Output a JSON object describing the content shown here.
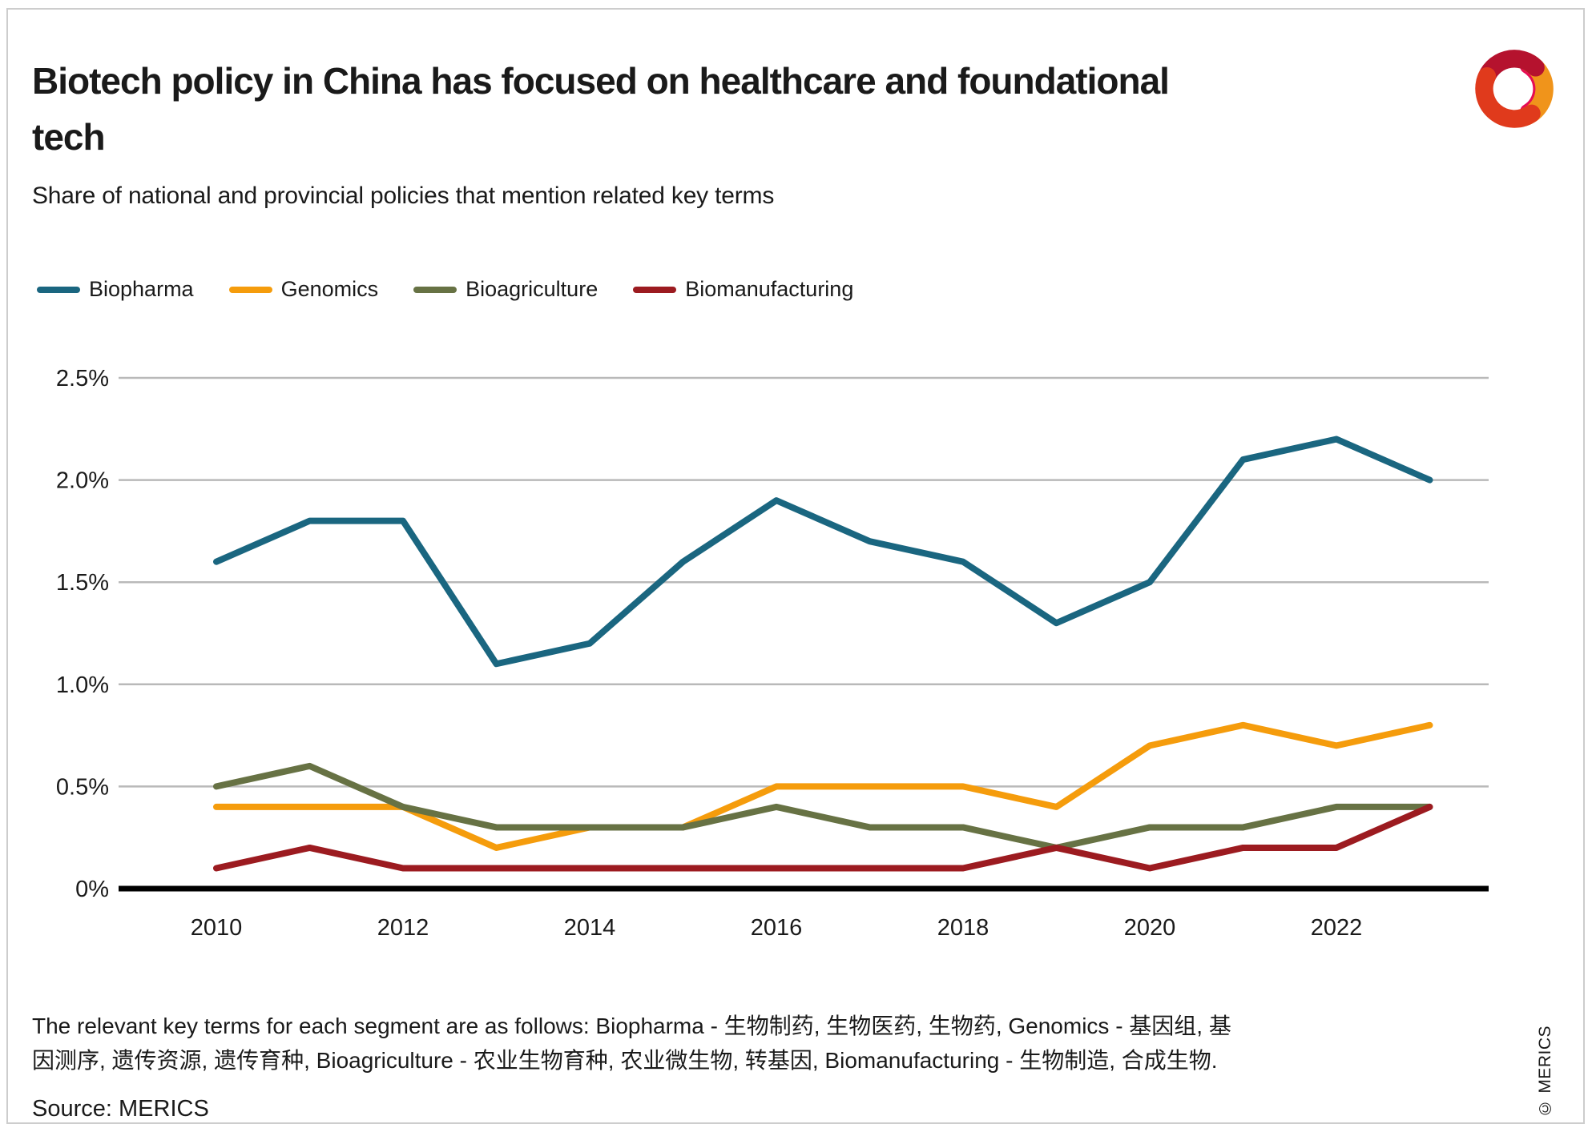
{
  "header": {
    "title_line1": "Biotech policy in China has focused on healthcare and foundational",
    "title_line2": "tech",
    "subtitle": "Share of national and provincial policies that mention related key terms"
  },
  "colors": {
    "grid": "#b9b9b9",
    "axis": "#000000",
    "text": "#1a1a1a",
    "logo_crimson": "#B5122E",
    "logo_orange": "#F0941B",
    "logo_red": "#E03A1C",
    "logo_magenta": "#E60C54"
  },
  "chart_data": {
    "type": "line",
    "title": "Biotech policy in China has focused on healthcare and foundational tech",
    "subtitle": "Share of national and provincial policies that mention related key terms",
    "x": [
      2010,
      2011,
      2012,
      2013,
      2014,
      2015,
      2016,
      2017,
      2018,
      2019,
      2020,
      2021,
      2022,
      2023
    ],
    "x_tick_labels": [
      "2010",
      "2012",
      "2014",
      "2016",
      "2018",
      "2020",
      "2022"
    ],
    "y_ticks": [
      {
        "label": "2.5%",
        "value": 2.5
      },
      {
        "label": "2.0%",
        "value": 2.0
      },
      {
        "label": "1.5%",
        "value": 1.5
      },
      {
        "label": "1.0%",
        "value": 1.0
      },
      {
        "label": "0.5%",
        "value": 0.5
      },
      {
        "label": "0%",
        "value": 0.0
      }
    ],
    "ylim": [
      0,
      2.5
    ],
    "xlim": [
      2010,
      2023
    ],
    "grid": true,
    "legend_position": "top",
    "series": [
      {
        "name": "Biopharma",
        "color": "#1A6680",
        "values": [
          1.6,
          1.8,
          1.8,
          1.1,
          1.2,
          1.6,
          1.9,
          1.7,
          1.6,
          1.3,
          1.5,
          2.1,
          2.2,
          2.0
        ]
      },
      {
        "name": "Genomics",
        "color": "#F59C0C",
        "values": [
          0.4,
          0.4,
          0.4,
          0.2,
          0.3,
          0.3,
          0.5,
          0.5,
          0.5,
          0.4,
          0.7,
          0.8,
          0.7,
          0.8
        ]
      },
      {
        "name": "Bioagriculture",
        "color": "#677244",
        "values": [
          0.5,
          0.6,
          0.4,
          0.3,
          0.3,
          0.3,
          0.4,
          0.3,
          0.3,
          0.2,
          0.3,
          0.3,
          0.4,
          0.4
        ]
      },
      {
        "name": "Biomanufacturing",
        "color": "#9C1B20",
        "values": [
          0.1,
          0.2,
          0.1,
          0.1,
          0.1,
          0.1,
          0.1,
          0.1,
          0.1,
          0.2,
          0.1,
          0.2,
          0.2,
          0.4
        ]
      }
    ]
  },
  "footer": {
    "note": "The relevant key terms for each segment are as follows: Biopharma - 生物制药, 生物医药, 生物药, Genomics - 基因组, 基因测序, 遗传资源, 遗传育种, Bioagriculture - 农业生物育种, 农业微生物, 转基因, Biomanufacturing - 生物制造, 合成生物.",
    "source": "Source: MERICS",
    "copyright": "© MERICS"
  },
  "branding": {
    "logo_name": "merics-swirl-logo"
  }
}
